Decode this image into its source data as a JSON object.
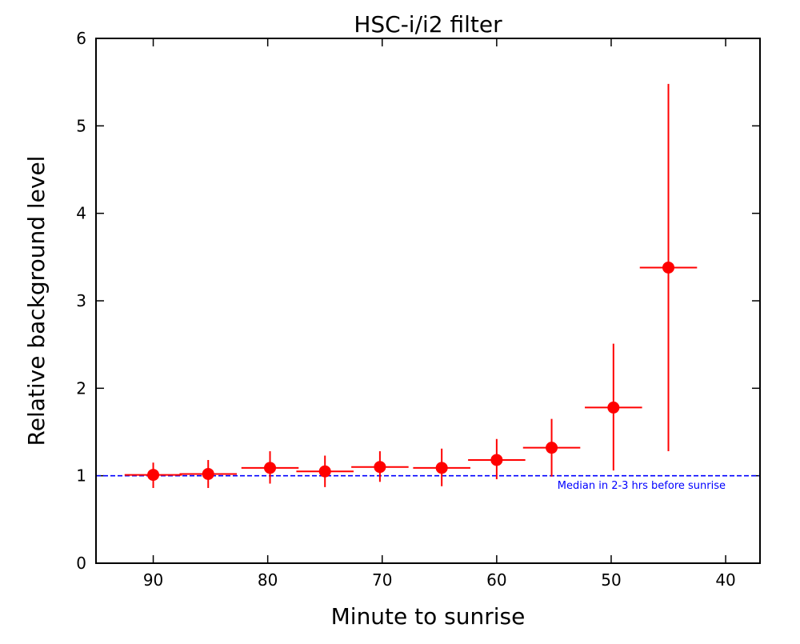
{
  "chart_data": {
    "type": "scatter",
    "title": "HSC-i/i2 filter",
    "xlabel": "Minute to sunrise",
    "ylabel": "Relative background level",
    "xlim": [
      95,
      37
    ],
    "ylim": [
      0,
      6
    ],
    "xticks": [
      90,
      80,
      70,
      60,
      50,
      40
    ],
    "yticks": [
      0,
      1,
      2,
      3,
      4,
      5,
      6
    ],
    "grid": false,
    "series": [
      {
        "name": "background",
        "color": "#ff0000",
        "x": [
          90.0,
          85.2,
          79.8,
          75.0,
          70.2,
          64.8,
          60.0,
          55.2,
          49.8,
          45.0
        ],
        "y": [
          1.01,
          1.02,
          1.09,
          1.05,
          1.1,
          1.09,
          1.18,
          1.32,
          1.78,
          3.38
        ],
        "xerr": [
          2.5,
          2.5,
          2.5,
          2.5,
          2.5,
          2.5,
          2.5,
          2.5,
          2.5,
          2.5
        ],
        "y_upper": [
          1.15,
          1.18,
          1.28,
          1.23,
          1.28,
          1.31,
          1.42,
          1.65,
          2.51,
          5.48
        ],
        "y_lower": [
          0.86,
          0.86,
          0.91,
          0.87,
          0.93,
          0.88,
          0.96,
          0.99,
          1.06,
          1.28
        ]
      }
    ],
    "reference_line": {
      "y": 1.0,
      "color": "#0000ff",
      "style": "dashed",
      "label": "Median in 2-3 hrs before sunrise"
    }
  }
}
